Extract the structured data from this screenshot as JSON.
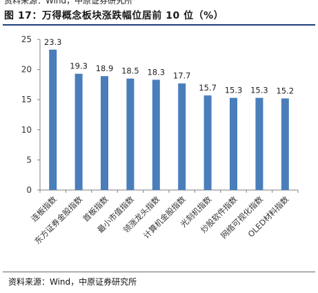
{
  "header": {
    "top_source": "资料来源：Wind，中原证券研究所",
    "title": "图 17：万得概念板块涨跌幅位居前 10 位（%）"
  },
  "footer": {
    "source": "资料来源：Wind，中原证券研究所"
  },
  "chart_data": {
    "type": "bar",
    "title": "",
    "xlabel": "",
    "ylabel": "",
    "categories": [
      "连板指数",
      "东方证券金股指数",
      "首板指数",
      "最小市值指数",
      "领涨龙头指数",
      "计算机金股指数",
      "光刻机指数",
      "炒股软件指数",
      "网络可视化指数",
      "OLED材料指数"
    ],
    "series": [
      {
        "values": [
          23.3,
          19.3,
          18.9,
          18.5,
          18.3,
          17.7,
          15.7,
          15.3,
          15.3,
          15.2
        ]
      }
    ],
    "value_labels": [
      "23.3",
      "19.3",
      "18.9",
      "18.5",
      "18.3",
      "17.7",
      "15.7",
      "15.3",
      "15.3",
      "15.2"
    ],
    "ylim": [
      0,
      25
    ],
    "yticks": [
      0,
      5,
      10,
      15,
      20,
      25
    ],
    "grid": false,
    "legend": "none",
    "bar_color": "#4a7ebb"
  }
}
